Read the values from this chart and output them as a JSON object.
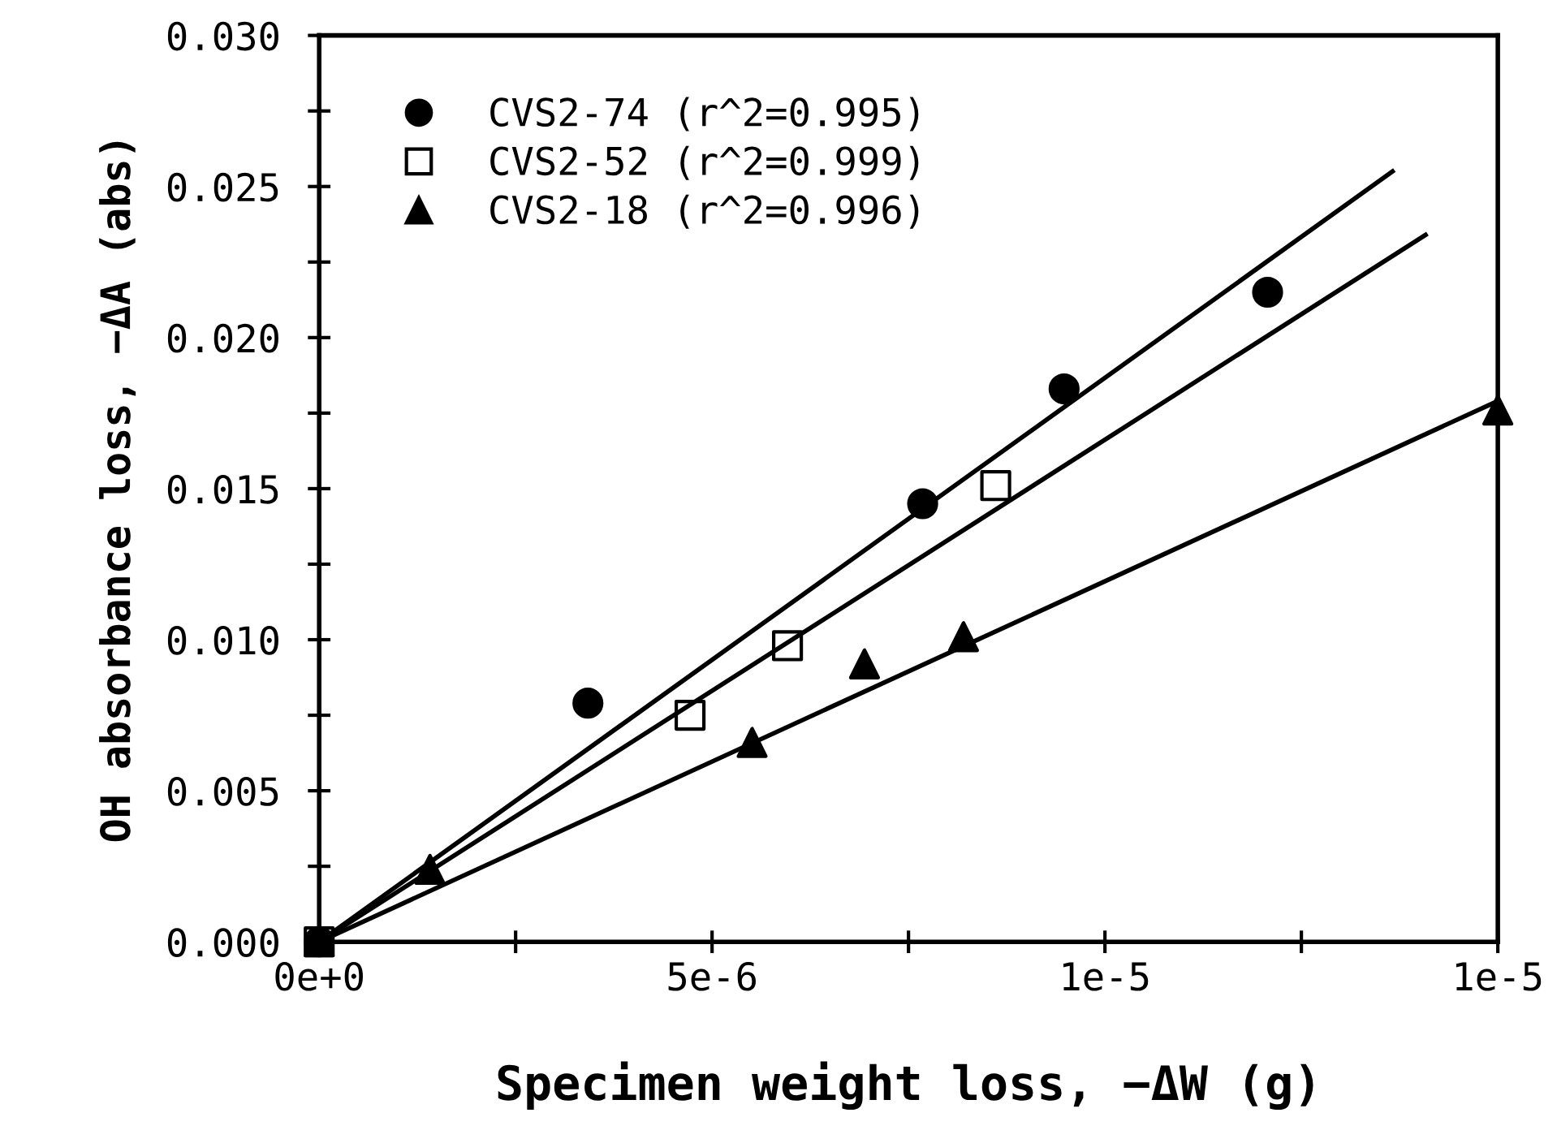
{
  "chart_data": {
    "type": "scatter",
    "xlabel": "Specimen weight loss, −ΔW (g)",
    "ylabel": "OH absorbance loss, −ΔA (abs)",
    "xlim": [
      0,
      1.5e-05
    ],
    "ylim": [
      0,
      0.03
    ],
    "xticks": [
      {
        "value": 0,
        "label": "0e+0"
      },
      {
        "value": 2.5e-06,
        "label": null
      },
      {
        "value": 5e-06,
        "label": "5e-6"
      },
      {
        "value": 7.5e-06,
        "label": null
      },
      {
        "value": 1e-05,
        "label": "1e-5"
      },
      {
        "value": 1.25e-05,
        "label": null
      },
      {
        "value": 1.5e-05,
        "label": "1e-5"
      }
    ],
    "yticks": [
      {
        "value": 0,
        "label": "0.000"
      },
      {
        "value": 0.0025,
        "label": null
      },
      {
        "value": 0.005,
        "label": "0.005"
      },
      {
        "value": 0.0075,
        "label": null
      },
      {
        "value": 0.01,
        "label": "0.010"
      },
      {
        "value": 0.0125,
        "label": null
      },
      {
        "value": 0.015,
        "label": "0.015"
      },
      {
        "value": 0.0175,
        "label": null
      },
      {
        "value": 0.02,
        "label": "0.020"
      },
      {
        "value": 0.0225,
        "label": null
      },
      {
        "value": 0.025,
        "label": "0.025"
      },
      {
        "value": 0.0275,
        "label": null
      },
      {
        "value": 0.03,
        "label": "0.030"
      }
    ],
    "grid": false,
    "legend": "top left",
    "series": [
      {
        "name": "CVS2-74 (r^2=0.995)",
        "color": "#000000",
        "marker": "circle",
        "x": [
          0,
          3.42e-06,
          7.68e-06,
          9.48e-06,
          1.207e-05
        ],
        "values": [
          0,
          0.0079,
          0.0145,
          0.0183,
          0.0215
        ]
      },
      {
        "name": "CVS2-52 (r^2=0.999)",
        "color": "#000000",
        "marker": "square",
        "x": [
          0,
          4.72e-06,
          5.96e-06,
          8.61e-06
        ],
        "values": [
          0,
          0.0075,
          0.0098,
          0.0151
        ]
      },
      {
        "name": "CVS2-18 (r^2=0.996)",
        "color": "#000000",
        "marker": "triangle",
        "x": [
          0,
          1.41e-06,
          5.51e-06,
          6.94e-06,
          8.2e-06,
          1.5e-05
        ],
        "values": [
          0,
          0.0024,
          0.0066,
          0.0092,
          0.0101,
          0.0176
        ]
      },
      {
        "type": "line",
        "color": "#000000",
        "marker": "none",
        "line_style": "solid",
        "x": [
          0,
          1.366e-05
        ],
        "values": [
          0,
          0.0255
        ]
      },
      {
        "type": "line",
        "color": "#000000",
        "marker": "none",
        "line_style": "solid",
        "x": [
          0,
          1.408e-05
        ],
        "values": [
          0,
          0.0234
        ]
      },
      {
        "type": "line",
        "color": "#000000",
        "marker": "none",
        "line_style": "solid",
        "x": [
          0,
          1.5e-05
        ],
        "values": [
          0,
          0.0179
        ]
      }
    ]
  }
}
